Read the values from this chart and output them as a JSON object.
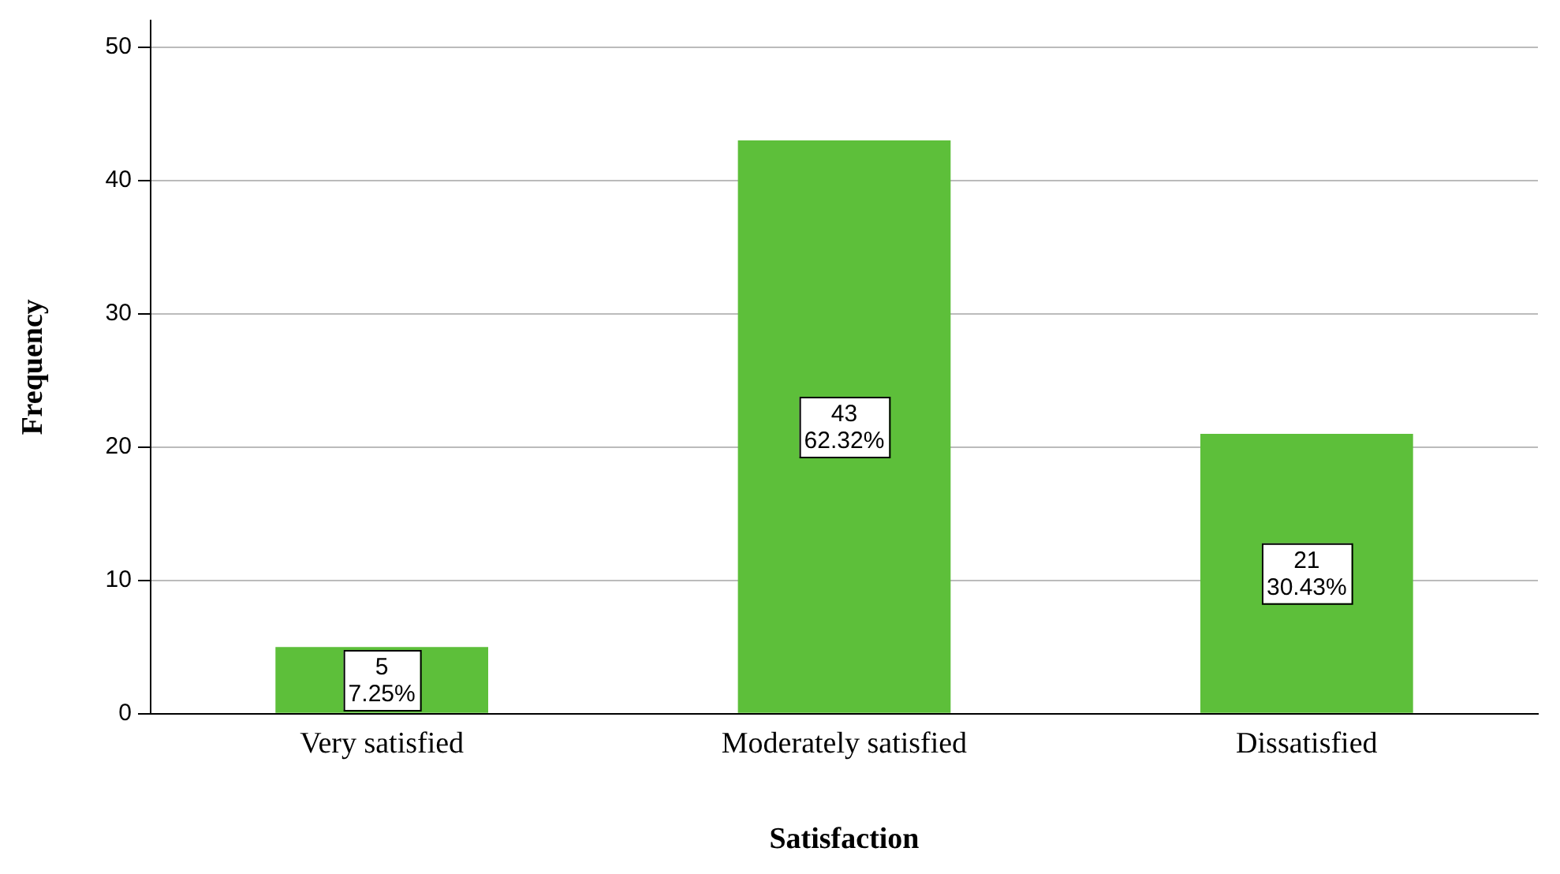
{
  "chart_data": {
    "type": "bar",
    "xlabel": "Satisfaction",
    "ylabel": "Frequency",
    "categories": [
      "Very satisfied",
      "Moderately satisfied",
      "Dissatisfied"
    ],
    "values": [
      5,
      43,
      21
    ],
    "value_labels": [
      "5\n7.25%",
      "43\n62.32%",
      "21\n30.43%"
    ],
    "color": "#5dbf3a",
    "ylim": [
      0,
      52
    ],
    "yticks": [
      0,
      10,
      20,
      30,
      40,
      50
    ],
    "grid": "y",
    "legend": false
  }
}
